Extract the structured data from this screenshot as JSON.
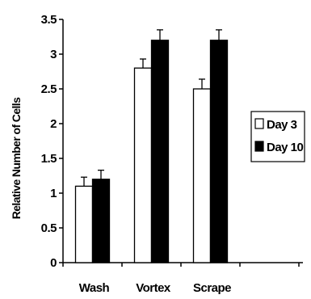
{
  "chart_data": {
    "type": "bar",
    "title": "",
    "xlabel": "",
    "ylabel": "Relative Number of Cells",
    "ylim": [
      0,
      3.5
    ],
    "yticks": [
      "0",
      "0.5",
      "1",
      "1.5",
      "2",
      "2.5",
      "3",
      "3.5"
    ],
    "categories": [
      "Wash",
      "Vortex",
      "Scrape"
    ],
    "series": [
      {
        "name": "Day 3",
        "values": [
          1.1,
          2.8,
          2.5
        ],
        "errors": [
          0.13,
          0.13,
          0.14
        ]
      },
      {
        "name": "Day 10",
        "values": [
          1.2,
          3.2,
          3.2
        ],
        "errors": [
          0.13,
          0.15,
          0.15
        ]
      }
    ],
    "legend_position": "right",
    "grid": false,
    "colors": {
      "Day 3": "#ffffff",
      "Day 10": "#000000",
      "edge": "#000000"
    }
  }
}
